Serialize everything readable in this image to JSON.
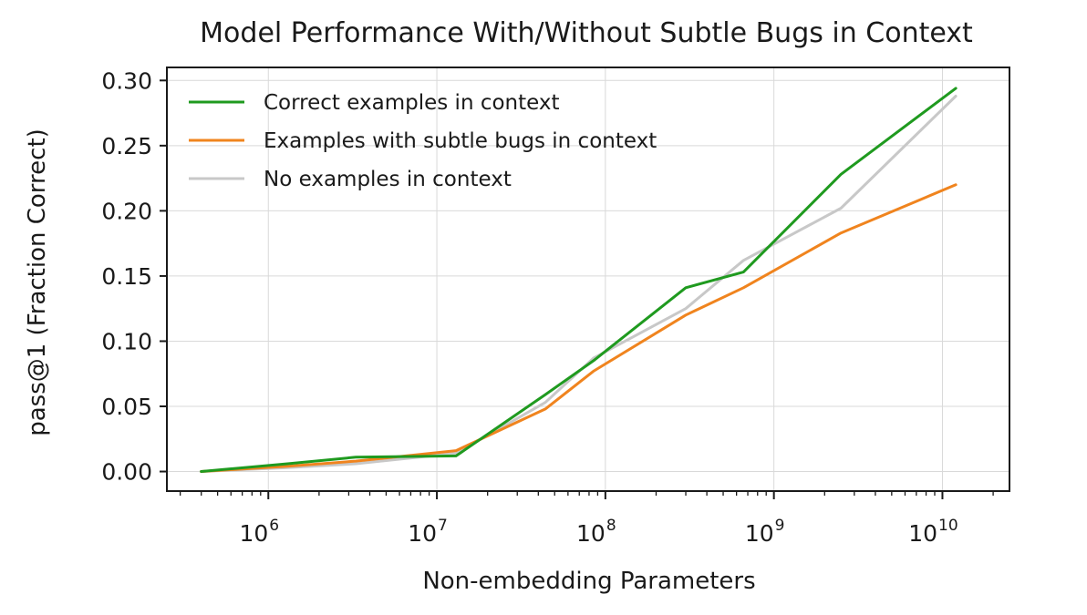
{
  "chart_data": {
    "type": "line",
    "title": "Model Performance With/Without Subtle Bugs in Context",
    "xlabel": "Non-embedding Parameters",
    "ylabel": "pass@1 (Fraction Correct)",
    "x_scale": "log",
    "xlim": [
      250000,
      25000000000
    ],
    "ylim": [
      -0.015,
      0.31
    ],
    "grid": true,
    "legend_position": "top-left",
    "x_ticks": [
      {
        "value": 1000000,
        "base": "10",
        "exp": "6"
      },
      {
        "value": 10000000,
        "base": "10",
        "exp": "7"
      },
      {
        "value": 100000000,
        "base": "10",
        "exp": "8"
      },
      {
        "value": 1000000000,
        "base": "10",
        "exp": "9"
      },
      {
        "value": 10000000000,
        "base": "10",
        "exp": "10"
      }
    ],
    "y_ticks": [
      {
        "value": 0.0,
        "label": "0.00"
      },
      {
        "value": 0.05,
        "label": "0.05"
      },
      {
        "value": 0.1,
        "label": "0.10"
      },
      {
        "value": 0.15,
        "label": "0.15"
      },
      {
        "value": 0.2,
        "label": "0.20"
      },
      {
        "value": 0.25,
        "label": "0.25"
      },
      {
        "value": 0.3,
        "label": "0.30"
      }
    ],
    "x": [
      400000,
      1300000,
      3300000,
      13000000,
      44000000,
      85000000,
      300000000,
      660000000,
      2500000000,
      12000000000
    ],
    "series": [
      {
        "name": "Correct examples in context",
        "color": "#1f9a1f",
        "values": [
          0.0,
          0.006,
          0.011,
          0.012,
          0.059,
          0.085,
          0.141,
          0.153,
          0.228,
          0.294
        ]
      },
      {
        "name": "Examples with subtle bugs in context",
        "color": "#f0841e",
        "values": [
          0.0,
          0.004,
          0.008,
          0.016,
          0.048,
          0.077,
          0.12,
          0.141,
          0.183,
          0.22
        ]
      },
      {
        "name": "No examples in context",
        "color": "#c8c8c8",
        "values": [
          0.0,
          0.003,
          0.006,
          0.014,
          0.053,
          0.087,
          0.125,
          0.162,
          0.202,
          0.288
        ]
      }
    ]
  }
}
